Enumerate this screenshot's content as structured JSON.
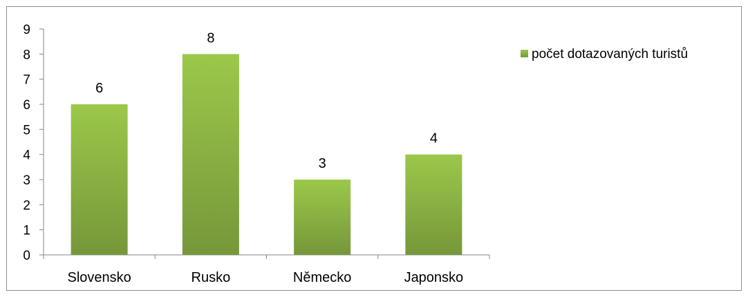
{
  "chart_data": {
    "type": "bar",
    "categories": [
      "Slovensko",
      "Rusko",
      "Německo",
      "Japonsko"
    ],
    "series": [
      {
        "name": "počet dotazovaných turistů",
        "values": [
          6,
          8,
          3,
          4
        ]
      }
    ],
    "data_labels": [
      "6",
      "8",
      "3",
      "4"
    ],
    "y_ticks": [
      "0",
      "1",
      "2",
      "3",
      "4",
      "5",
      "6",
      "7",
      "8",
      "9"
    ],
    "ylim": [
      0,
      9
    ],
    "grid": false,
    "legend_position": "right",
    "title": "",
    "xlabel": "",
    "ylabel": "",
    "colors": {
      "bar_top": "#9bc84a",
      "bar_bottom": "#76973a",
      "axis": "#868686"
    }
  }
}
